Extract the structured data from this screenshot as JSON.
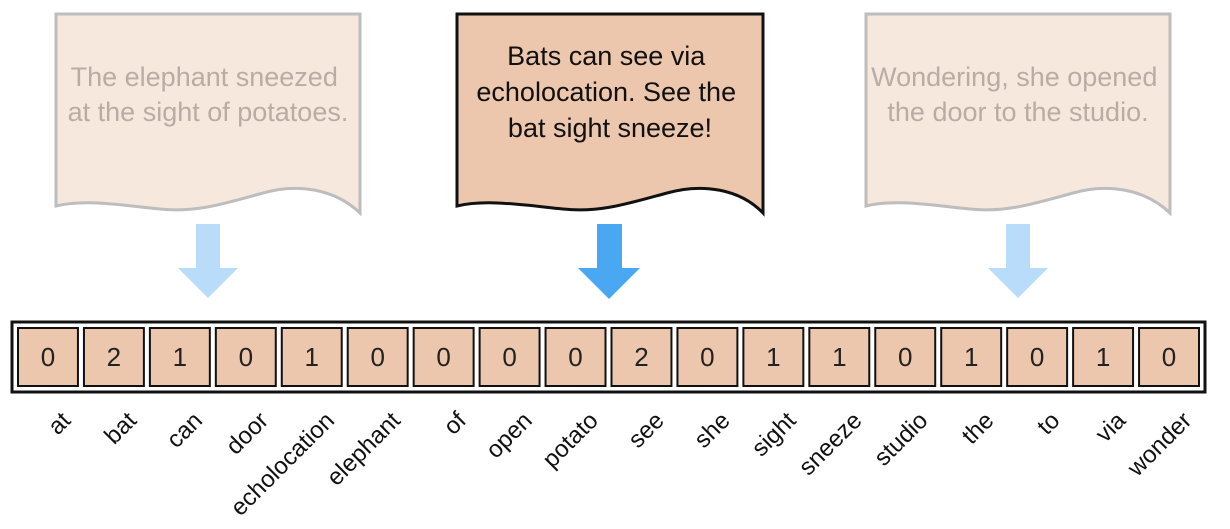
{
  "documents": [
    {
      "lines": [
        "The elephant sneezed",
        "at the sight of potatoes."
      ],
      "state": "faded"
    },
    {
      "lines": [
        "Bats can see via",
        "echolocation. See the",
        "bat sight sneeze!"
      ],
      "state": "active"
    },
    {
      "lines": [
        "Wondering, she opened",
        "the door to the studio."
      ],
      "state": "faded"
    }
  ],
  "vector": {
    "vocabulary": [
      "at",
      "bat",
      "can",
      "door",
      "echolocation",
      "elephant",
      "of",
      "open",
      "potato",
      "see",
      "she",
      "sight",
      "sneeze",
      "studio",
      "the",
      "to",
      "via",
      "wonder"
    ],
    "counts": [
      0,
      2,
      1,
      0,
      1,
      0,
      0,
      0,
      0,
      2,
      0,
      1,
      1,
      0,
      1,
      0,
      1,
      0
    ]
  },
  "colors": {
    "active_fill": "#ecc6ad",
    "faded_fill": "#f7e8de",
    "active_text": "#111111",
    "faded_text": "#b8aca5",
    "faded_border": "#bdbdbd",
    "active_border": "#111111",
    "active_arrow": "#4aa8f2",
    "faded_arrow": "#b9dcfb",
    "cell_fill": "#ecc6ad",
    "cell_border": "#111111"
  }
}
